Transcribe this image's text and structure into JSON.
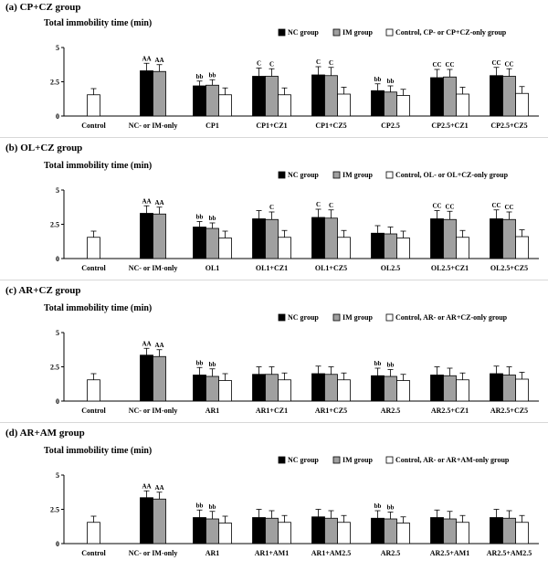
{
  "legend": {
    "nc": "NC group",
    "im": "IM group"
  },
  "colors": {
    "nc": "#000000",
    "im": "#a0a0a0",
    "control": "#ffffff",
    "stroke": "#000000"
  },
  "chart_data": [
    {
      "type": "bar",
      "panel_title": "(a) CP+CZ group",
      "ylabel": "Total immobility time (min)",
      "ylim": [
        0,
        5
      ],
      "yticks": [
        "0",
        "2.5",
        "5"
      ],
      "legend_control": "Control, CP- or CP+CZ-only group",
      "categories": [
        "Control",
        "NC- or IM-only",
        "CP1",
        "CP1+CZ1",
        "CP1+CZ5",
        "CP2.5",
        "CP2.5+CZ1",
        "CP2.5+CZ5"
      ],
      "series": [
        {
          "name": "NC group",
          "values": [
            null,
            3.3,
            2.2,
            2.9,
            3.0,
            1.85,
            2.8,
            2.95
          ],
          "errors": [
            null,
            0.55,
            0.35,
            0.6,
            0.6,
            0.5,
            0.6,
            0.6
          ],
          "labels": [
            "",
            "AA",
            "bb",
            "C",
            "C",
            "bb",
            "CC",
            "CC"
          ]
        },
        {
          "name": "IM group",
          "values": [
            null,
            3.25,
            2.25,
            2.9,
            2.95,
            1.75,
            2.85,
            2.9
          ],
          "errors": [
            null,
            0.5,
            0.4,
            0.55,
            0.6,
            0.45,
            0.55,
            0.55
          ],
          "labels": [
            "",
            "AA",
            "bb",
            "C",
            "C",
            "bb",
            "CC",
            "CC"
          ]
        },
        {
          "name": "Control, CP- or CP+CZ-only group",
          "values": [
            1.55,
            null,
            1.55,
            1.55,
            1.6,
            1.5,
            1.6,
            1.65
          ],
          "errors": [
            0.45,
            null,
            0.5,
            0.5,
            0.5,
            0.45,
            0.5,
            0.5
          ],
          "labels": [
            "",
            "",
            "",
            "",
            "",
            "",
            "",
            ""
          ]
        }
      ]
    },
    {
      "type": "bar",
      "panel_title": "(b) OL+CZ group",
      "ylabel": "Total immobility time (min)",
      "ylim": [
        0,
        5
      ],
      "yticks": [
        "0",
        "2.5",
        "5"
      ],
      "legend_control": "Control, OL- or OL+CZ-only group",
      "categories": [
        "Control",
        "NC- or IM-only",
        "OL1",
        "OL1+CZ1",
        "OL1+CZ5",
        "OL2.5",
        "OL2.5+CZ1",
        "OL2.5+CZ5"
      ],
      "series": [
        {
          "name": "NC group",
          "values": [
            null,
            3.3,
            2.3,
            2.9,
            3.0,
            1.85,
            2.9,
            2.9
          ],
          "errors": [
            null,
            0.55,
            0.4,
            0.6,
            0.6,
            0.55,
            0.6,
            0.65
          ],
          "labels": [
            "",
            "AA",
            "bb",
            "",
            "C",
            "",
            "CC",
            "CC"
          ]
        },
        {
          "name": "IM group",
          "values": [
            null,
            3.25,
            2.2,
            2.85,
            2.95,
            1.8,
            2.85,
            2.85
          ],
          "errors": [
            null,
            0.5,
            0.4,
            0.55,
            0.6,
            0.5,
            0.6,
            0.55
          ],
          "labels": [
            "",
            "AA",
            "bb",
            "C",
            "C",
            "",
            "CC",
            "CC"
          ]
        },
        {
          "name": "Control, OL- or OL+CZ-only group",
          "values": [
            1.55,
            null,
            1.5,
            1.55,
            1.55,
            1.5,
            1.55,
            1.6
          ],
          "errors": [
            0.45,
            null,
            0.5,
            0.5,
            0.5,
            0.5,
            0.5,
            0.5
          ],
          "labels": [
            "",
            "",
            "",
            "",
            "",
            "",
            "",
            ""
          ]
        }
      ]
    },
    {
      "type": "bar",
      "panel_title": "(c) AR+CZ group",
      "ylabel": "Total immobility time (min)",
      "ylim": [
        0,
        5
      ],
      "yticks": [
        "0",
        "2.5",
        "5"
      ],
      "legend_control": "Control, AR- or AR+CZ-only group",
      "categories": [
        "Control",
        "NC- or IM-only",
        "AR1",
        "AR1+CZ1",
        "AR1+CZ5",
        "AR2.5",
        "AR2.5+CZ1",
        "AR2.5+CZ5"
      ],
      "series": [
        {
          "name": "NC group",
          "values": [
            null,
            3.35,
            1.9,
            1.95,
            2.0,
            1.85,
            1.9,
            2.0
          ],
          "errors": [
            null,
            0.5,
            0.55,
            0.55,
            0.55,
            0.55,
            0.6,
            0.55
          ],
          "labels": [
            "",
            "AA",
            "bb",
            "",
            "",
            "bb",
            "",
            ""
          ]
        },
        {
          "name": "IM group",
          "values": [
            null,
            3.25,
            1.8,
            1.95,
            1.95,
            1.8,
            1.85,
            1.9
          ],
          "errors": [
            null,
            0.5,
            0.55,
            0.55,
            0.55,
            0.5,
            0.55,
            0.6
          ],
          "labels": [
            "",
            "AA",
            "bb",
            "",
            "",
            "bb",
            "",
            ""
          ]
        },
        {
          "name": "Control, AR- or AR+CZ-only group",
          "values": [
            1.55,
            null,
            1.5,
            1.55,
            1.55,
            1.5,
            1.55,
            1.6
          ],
          "errors": [
            0.45,
            null,
            0.5,
            0.5,
            0.5,
            0.45,
            0.5,
            0.5
          ],
          "labels": [
            "",
            "",
            "",
            "",
            "",
            "",
            "",
            ""
          ]
        }
      ]
    },
    {
      "type": "bar",
      "panel_title": "(d) AR+AM group",
      "ylabel": "Total immobility time (min)",
      "ylim": [
        0,
        5
      ],
      "yticks": [
        "0",
        "2.5",
        "5"
      ],
      "legend_control": "Control, AR- or AR+AM-only group",
      "categories": [
        "Control",
        "NC- or IM-only",
        "AR1",
        "AR1+AM1",
        "AR1+AM2.5",
        "AR2.5",
        "AR2.5+AM1",
        "AR2.5+AM2.5"
      ],
      "series": [
        {
          "name": "NC group",
          "values": [
            null,
            3.35,
            1.9,
            1.9,
            1.95,
            1.85,
            1.9,
            1.9
          ],
          "errors": [
            null,
            0.5,
            0.55,
            0.6,
            0.55,
            0.55,
            0.55,
            0.6
          ],
          "labels": [
            "",
            "AA",
            "bb",
            "",
            "",
            "bb",
            "",
            ""
          ]
        },
        {
          "name": "IM group",
          "values": [
            null,
            3.25,
            1.8,
            1.85,
            1.85,
            1.8,
            1.8,
            1.85
          ],
          "errors": [
            null,
            0.5,
            0.55,
            0.55,
            0.55,
            0.5,
            0.55,
            0.55
          ],
          "labels": [
            "",
            "AA",
            "bb",
            "",
            "",
            "bb",
            "",
            ""
          ]
        },
        {
          "name": "Control, AR- or AR+AM-only group",
          "values": [
            1.55,
            null,
            1.5,
            1.55,
            1.55,
            1.5,
            1.55,
            1.55
          ],
          "errors": [
            0.45,
            null,
            0.5,
            0.5,
            0.5,
            0.45,
            0.5,
            0.5
          ],
          "labels": [
            "",
            "",
            "",
            "",
            "",
            "",
            "",
            ""
          ]
        }
      ]
    }
  ]
}
